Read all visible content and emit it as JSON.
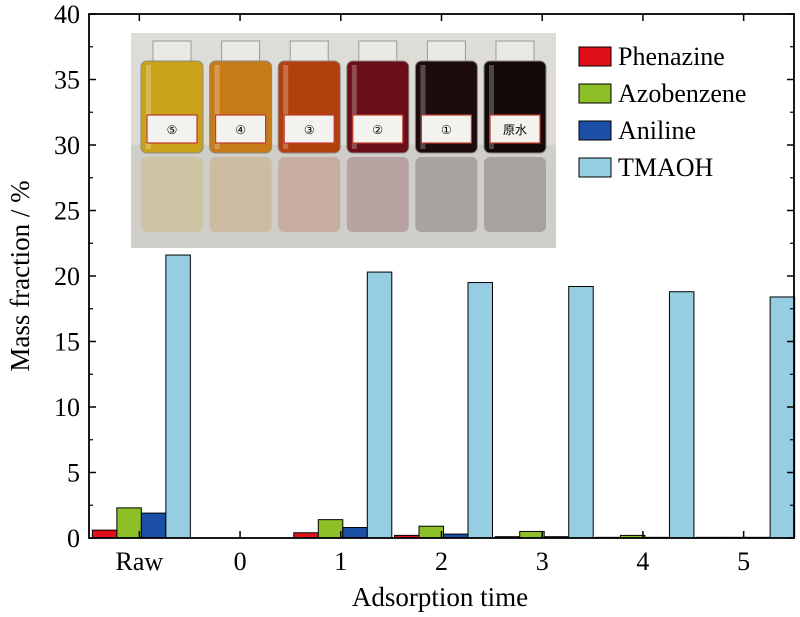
{
  "chart_data": {
    "type": "bar",
    "xlabel": "Adsorption time",
    "ylabel": "Mass fraction / %",
    "ylim": [
      0,
      40
    ],
    "yticks": [
      0,
      5,
      10,
      15,
      20,
      25,
      30,
      35,
      40
    ],
    "categories": [
      "Raw",
      "0",
      "1",
      "2",
      "3",
      "4",
      "5"
    ],
    "legend_position": "top-right",
    "grid": false,
    "series": [
      {
        "name": "Phenazine",
        "color": "#e0101a",
        "values": [
          0.6,
          0.0,
          0.4,
          0.2,
          0.1,
          0.05,
          0.05
        ]
      },
      {
        "name": "Azobenzene",
        "color": "#8cc026",
        "values": [
          2.3,
          0.0,
          1.4,
          0.9,
          0.5,
          0.2,
          0.05
        ]
      },
      {
        "name": "Aniline",
        "color": "#1b4fa6",
        "values": [
          1.9,
          0.0,
          0.8,
          0.3,
          0.1,
          0.05,
          0.05
        ]
      },
      {
        "name": "TMAOH",
        "color": "#96cde2",
        "values": [
          21.6,
          0.0,
          20.3,
          19.5,
          19.2,
          18.8,
          18.4
        ]
      }
    ],
    "inset": {
      "description": "photograph of six glass vials of solution",
      "vials": [
        {
          "liquid": "#c9a21a",
          "label_text": "⑤"
        },
        {
          "liquid": "#c77a18",
          "label_text": "④"
        },
        {
          "liquid": "#b2400f",
          "label_text": "③"
        },
        {
          "liquid": "#6a0e18",
          "label_text": "②"
        },
        {
          "liquid": "#1d0c0c",
          "label_text": "①"
        },
        {
          "liquid": "#140a0a",
          "label_text": "原水"
        }
      ]
    }
  }
}
